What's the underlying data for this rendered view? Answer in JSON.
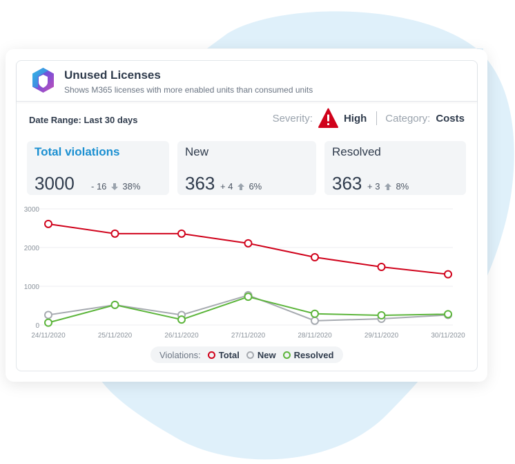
{
  "widget": {
    "title": "Unused Licenses",
    "subtitle": "Shows M365 licenses with more enabled units than consumed units"
  },
  "filters": {
    "date_range": "Date Range: Last 30 days",
    "severity_label": "Severity:",
    "severity_value": "High",
    "category_label": "Category:",
    "category_value": "Costs"
  },
  "stats": [
    {
      "label": "Total violations",
      "value": "3000",
      "delta": "- 16",
      "direction": "down",
      "percent": "38%"
    },
    {
      "label": "New",
      "value": "363",
      "delta": "+ 4",
      "direction": "up",
      "percent": "6%"
    },
    {
      "label": "Resolved",
      "value": "363",
      "delta": "+ 3",
      "direction": "up",
      "percent": "8%"
    }
  ],
  "colors": {
    "total": "#d0021b",
    "new": "#a6aab0",
    "resolved": "#5cb53b",
    "accent": "#1a8fd1",
    "warning": "#d0021b",
    "blob": "#dff0fa"
  },
  "chart_data": {
    "type": "line",
    "x": [
      "24/11/2020",
      "25/11/2020",
      "26/11/2020",
      "27/11/2020",
      "28/11/2020",
      "29/11/2020",
      "30/11/2020"
    ],
    "yticks": [
      0,
      1000,
      2000,
      3000
    ],
    "ylim": [
      0,
      3000
    ],
    "grid": true,
    "legend_title": "Violations:",
    "legend_position": "bottom",
    "series": [
      {
        "name": "Total",
        "values": [
          2610,
          2360,
          2360,
          2110,
          1750,
          1500,
          1310
        ]
      },
      {
        "name": "New",
        "values": [
          260,
          520,
          260,
          770,
          110,
          160,
          260
        ]
      },
      {
        "name": "Resolved",
        "values": [
          60,
          520,
          140,
          730,
          290,
          250,
          280
        ]
      }
    ]
  }
}
